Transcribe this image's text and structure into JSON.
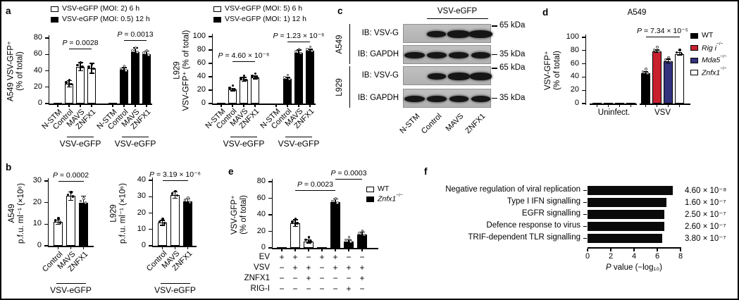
{
  "panels": {
    "a": "a",
    "b": "b",
    "c": "c",
    "d": "d",
    "e": "e",
    "f": "f"
  },
  "colors": {
    "black": "#000000",
    "white": "#ffffff",
    "red": "#c8202f",
    "navy": "#32327d"
  },
  "chart_data": [
    {
      "id": "a_left",
      "type": "bar",
      "ylabel": [
        "A549 VSV-GFP⁺",
        "(% of total)"
      ],
      "ylim": [
        0,
        80
      ],
      "yticks": [
        0,
        20,
        40,
        60,
        80
      ],
      "categories": [
        "N-STM",
        "Control",
        "MAVS",
        "ZNFX1",
        "N-STM",
        "Control",
        "MAVS",
        "ZNFX1"
      ],
      "values": [
        1,
        24,
        45,
        43,
        0.5,
        41,
        63,
        60
      ],
      "errors": [
        0.4,
        4,
        5,
        6,
        0.3,
        3,
        5,
        4
      ],
      "fills": [
        "#ffffff",
        "#ffffff",
        "#ffffff",
        "#ffffff",
        "#000000",
        "#000000",
        "#000000",
        "#000000"
      ],
      "legend": [
        {
          "main": "VSV-eGFP (MOI: 2) 6 h",
          "fill": "#ffffff"
        },
        {
          "main": "VSV-eGFP (MOI: 0.5) 12 h",
          "fill": "#000000"
        }
      ],
      "annotations": [
        {
          "text": "P = 0.0028",
          "from": 1,
          "to": 3
        },
        {
          "text": "P = 0.0013",
          "from": 5,
          "to": 7
        }
      ],
      "group_labels": [
        {
          "text": "VSV-eGFP",
          "from": 1,
          "to": 3
        },
        {
          "text": "VSV-eGFP",
          "from": 5,
          "to": 7
        }
      ]
    },
    {
      "id": "a_right",
      "type": "bar",
      "ylabel": [
        "L929",
        "VSV-GFP⁺ (% of total)"
      ],
      "ylim": [
        0,
        100
      ],
      "yticks": [
        0,
        20,
        40,
        60,
        80,
        100
      ],
      "categories": [
        "N-STM",
        "Control",
        "MAVS",
        "ZNFX1",
        "N-STM",
        "Control",
        "MAVS",
        "ZNFX1"
      ],
      "values": [
        1,
        21,
        36,
        39,
        0.5,
        37,
        76,
        79
      ],
      "errors": [
        0.4,
        2,
        3,
        2,
        0.3,
        2,
        4,
        2
      ],
      "fills": [
        "#ffffff",
        "#ffffff",
        "#ffffff",
        "#ffffff",
        "#000000",
        "#000000",
        "#000000",
        "#000000"
      ],
      "legend": [
        {
          "main": "VSV-eGFP (MOI: 5) 6 h",
          "fill": "#ffffff"
        },
        {
          "main": "VSV-eGFP (MOI: 1) 12 h",
          "fill": "#000000"
        }
      ],
      "annotations": [
        {
          "text": "P = 4.60 × 10⁻⁶",
          "from": 1,
          "to": 3
        },
        {
          "text": "P = 1.23 × 10⁻⁶",
          "from": 5,
          "to": 7
        }
      ],
      "group_labels": [
        {
          "text": "VSV-eGFP",
          "from": 1,
          "to": 3
        },
        {
          "text": "VSV-eGFP",
          "from": 5,
          "to": 7
        }
      ]
    },
    {
      "id": "b_left",
      "type": "bar",
      "ylabel": [
        "A549",
        "p.f.u. ml⁻¹ (×10⁶)"
      ],
      "ylim": [
        0,
        30
      ],
      "yticks": [
        0,
        10,
        20,
        30
      ],
      "categories": [
        "Control",
        "MAVS",
        "ZNFX1"
      ],
      "values": [
        11,
        23,
        20
      ],
      "errors": [
        1,
        2,
        3
      ],
      "fills": [
        "#ffffff",
        "#ffffff",
        "#000000"
      ],
      "annotations": [
        {
          "text": "P = 0.0002",
          "from": 0,
          "to": 2
        }
      ],
      "group_labels": [
        {
          "text": "VSV-eGFP",
          "from": 0,
          "to": 2
        }
      ]
    },
    {
      "id": "b_right",
      "type": "bar",
      "ylabel": [
        "L929",
        "p.f.u. ml⁻¹ (×10⁶)"
      ],
      "ylim": [
        0,
        40
      ],
      "yticks": [
        0,
        10,
        20,
        30,
        40
      ],
      "categories": [
        "Control",
        "MAVS",
        "ZNFX1"
      ],
      "values": [
        14,
        31,
        27
      ],
      "errors": [
        1.5,
        2,
        1.5
      ],
      "fills": [
        "#ffffff",
        "#ffffff",
        "#000000"
      ],
      "annotations": [
        {
          "text": "P = 3.19 × 10⁻⁶",
          "from": 0,
          "to": 2
        }
      ],
      "group_labels": [
        {
          "text": "VSV-eGFP",
          "from": 0,
          "to": 2
        }
      ]
    },
    {
      "id": "d",
      "type": "bar",
      "title": "A549",
      "ylabel": [
        "VSV-GFP⁺",
        "(% of total)"
      ],
      "ylim": [
        0,
        100
      ],
      "yticks": [
        0,
        20,
        40,
        60,
        80,
        100
      ],
      "group_ticks": [
        "Uninfect.",
        "VSV"
      ],
      "values": [
        1,
        1,
        1,
        1,
        46,
        79,
        64,
        75
      ],
      "errors": [
        0.3,
        0.3,
        0.3,
        0.3,
        2,
        2,
        3,
        2
      ],
      "fills": [
        "#000000",
        "#c8202f",
        "#32327d",
        "#ffffff",
        "#000000",
        "#c8202f",
        "#32327d",
        "#ffffff"
      ],
      "legend": [
        {
          "main": "WT",
          "fill": "#000000"
        },
        {
          "main": "Rig i",
          "sup": "−/−",
          "italic": true,
          "fill": "#c8202f"
        },
        {
          "main": "Mda5",
          "sup": "−/−",
          "italic": true,
          "fill": "#32327d"
        },
        {
          "main": "Znfx1",
          "sup": "−/−",
          "italic": true,
          "fill": "#ffffff"
        }
      ],
      "annotations": [
        {
          "text": "P = 7.34 × 10⁻⁵",
          "from": 4,
          "to": 7
        }
      ]
    },
    {
      "id": "e",
      "type": "bar",
      "ylabel": [
        "VSV-GFP⁺",
        "(% of total)"
      ],
      "ylim": [
        0,
        80
      ],
      "yticks": [
        0,
        20,
        40,
        60,
        80
      ],
      "values": [
        1,
        30,
        8,
        1,
        55,
        8,
        16
      ],
      "errors": [
        0.3,
        4,
        2,
        0.3,
        4,
        2,
        3
      ],
      "fills": [
        "#ffffff",
        "#ffffff",
        "#ffffff",
        "#000000",
        "#000000",
        "#000000",
        "#000000"
      ],
      "legend": [
        {
          "main": "WT",
          "fill": "#ffffff"
        },
        {
          "main": "Znfx1",
          "sup": "−/−",
          "italic": true,
          "fill": "#000000"
        }
      ],
      "annotations": [
        {
          "text": "P = 0.0023",
          "from": 1,
          "to": 4
        },
        {
          "text": "P = 0.0003",
          "from": 4,
          "to": 6
        }
      ],
      "matrix": [
        {
          "label": "EV",
          "values": [
            "+",
            "+",
            "−",
            "+",
            "+",
            "−",
            "−"
          ]
        },
        {
          "label": "VSV",
          "values": [
            "−",
            "+",
            "+",
            "−",
            "+",
            "+",
            "+"
          ]
        },
        {
          "label": "ZNFX1",
          "values": [
            "−",
            "−",
            "+",
            "−",
            "−",
            "−",
            "+"
          ]
        },
        {
          "label": "RIG-I",
          "values": [
            "−",
            "−",
            "−",
            "−",
            "−",
            "+",
            "−"
          ]
        }
      ]
    },
    {
      "id": "f",
      "type": "bar-h",
      "categories": [
        "Negative regulation of viral replication",
        "Type I IFN signalling",
        "EGFR signalling",
        "Defence response to virus",
        "TRIF-dependent TLR signalling"
      ],
      "values": [
        7.34,
        6.8,
        6.6,
        6.59,
        6.42
      ],
      "value_labels": [
        "4.60 × 10⁻⁸",
        "1.60 × 10⁻⁷",
        "2.50 × 10⁻⁷",
        "2.60 × 10⁻⁷",
        "3.80 × 10⁻⁷"
      ],
      "xlim": [
        0,
        8
      ],
      "xticks": [
        0,
        2,
        4,
        6,
        8
      ],
      "xlabel": "P value (−log₁₀)",
      "bar_fill": "#0a0a0a"
    }
  ],
  "blot": {
    "header": "VSV-eGFP",
    "lanes": [
      "N-STM",
      "Control",
      "MAVS",
      "ZNFX1"
    ],
    "groups": [
      {
        "name": "A549",
        "rows": [
          {
            "label": "IB: VSV-G",
            "kda": "65 kDa",
            "bands": [
              0,
              0.9,
              1.3,
              1.5
            ]
          },
          {
            "label": "IB: GAPDH",
            "kda": "35 kDa",
            "bands": [
              1.05,
              1,
              0.95,
              0.9
            ]
          }
        ]
      },
      {
        "name": "L929",
        "rows": [
          {
            "label": "IB: VSV-G",
            "kda": "65 kDa",
            "bands": [
              0,
              0.85,
              1.25,
              1.25
            ]
          },
          {
            "label": "IB: GAPDH",
            "kda": "35 kDa",
            "bands": [
              1.1,
              0.95,
              0.9,
              0.95
            ]
          }
        ]
      }
    ]
  }
}
